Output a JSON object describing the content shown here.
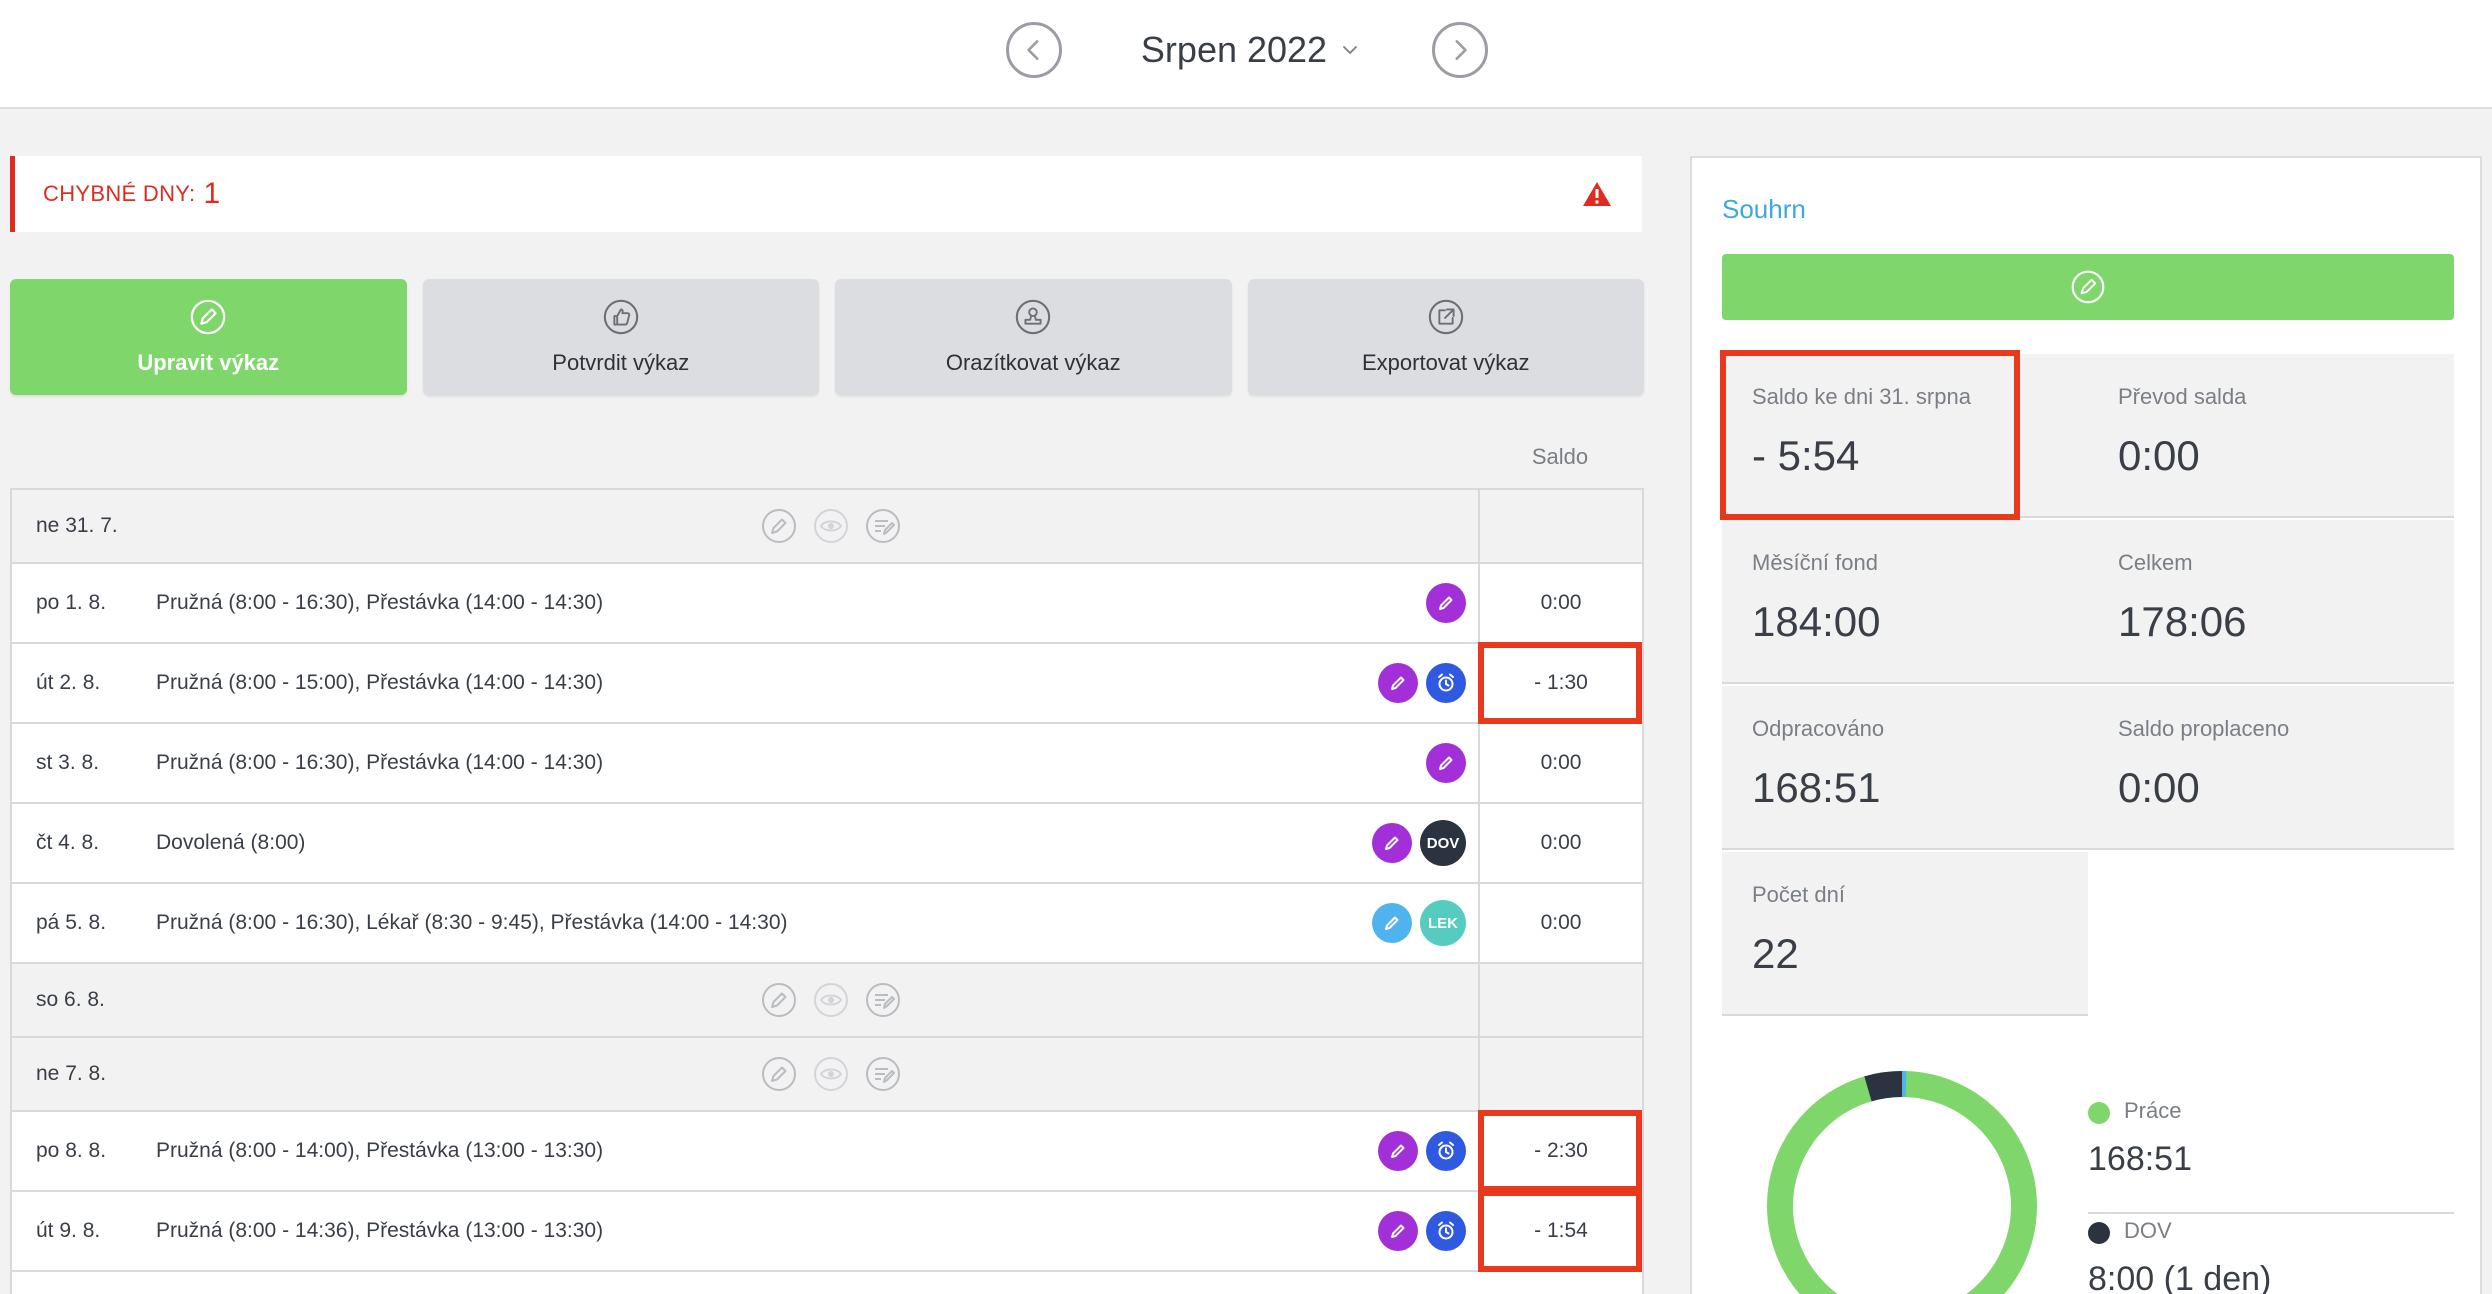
{
  "header": {
    "month": "Srpen 2022",
    "prev_icon": "chevron-left-icon",
    "next_icon": "chevron-right-icon"
  },
  "errors": {
    "label": "CHYBNÉ DNY:",
    "count": "1",
    "icon": "warning-icon",
    "color": "#e02b20"
  },
  "actions": [
    {
      "label": "Upravit výkaz",
      "icon": "pencil-icon",
      "primary": true
    },
    {
      "label": "Potvrdit výkaz",
      "icon": "thumbs-up-icon"
    },
    {
      "label": "Orazítkovat výkaz",
      "icon": "stamp-icon"
    },
    {
      "label": "Exportovat výkaz",
      "icon": "export-icon"
    }
  ],
  "table": {
    "saldo_header": "Saldo",
    "rows": [
      {
        "day": "ne 31. 7.",
        "weekend": true
      },
      {
        "day": "po 1. 8.",
        "desc": "Pružná (8:00 - 16:30), Přestávka (14:00 - 14:30)",
        "saldo": "0:00",
        "icons": [
          "pencil"
        ]
      },
      {
        "day": "út 2. 8.",
        "desc": "Pružná (8:00 - 15:00), Přestávka (14:00 - 14:30)",
        "saldo": "- 1:30",
        "icons": [
          "pencil",
          "alarm"
        ],
        "highlight": true
      },
      {
        "day": "st 3. 8.",
        "desc": "Pružná (8:00 - 16:30), Přestávka (14:00 - 14:30)",
        "saldo": "0:00",
        "icons": [
          "pencil"
        ]
      },
      {
        "day": "čt 4. 8.",
        "desc": "Dovolená (8:00)",
        "saldo": "0:00",
        "icons": [
          "pencil",
          "DOV"
        ]
      },
      {
        "day": "pá 5. 8.",
        "desc": "Pružná (8:00 - 16:30), Lékař (8:30 - 9:45), Přestávka (14:00 - 14:30)",
        "saldo": "0:00",
        "icons": [
          "pencil-light",
          "LEK"
        ]
      },
      {
        "day": "so 6. 8.",
        "weekend": true
      },
      {
        "day": "ne 7. 8.",
        "weekend": true
      },
      {
        "day": "po 8. 8.",
        "desc": "Pružná (8:00 - 14:00), Přestávka (13:00 - 13:30)",
        "saldo": "- 2:30",
        "icons": [
          "pencil",
          "alarm"
        ],
        "highlight": true
      },
      {
        "day": "út 9. 8.",
        "desc": "Pružná (8:00 - 14:36), Přestávka (13:00 - 13:30)",
        "saldo": "- 1:54",
        "icons": [
          "pencil",
          "alarm"
        ],
        "highlight": true
      }
    ]
  },
  "summary": {
    "title": "Souhrn",
    "edit_icon": "pencil-icon",
    "cells": [
      {
        "label": "Saldo ke dni 31. srpna",
        "value": "- 5:54",
        "highlight": true
      },
      {
        "label": "Převod salda",
        "value": "0:00"
      },
      {
        "label": "Měsíční fond",
        "value": "184:00"
      },
      {
        "label": "Celkem",
        "value": "178:06"
      },
      {
        "label": "Odpracováno",
        "value": "168:51"
      },
      {
        "label": "Saldo proplaceno",
        "value": "0:00"
      },
      {
        "label": "Počet dní",
        "value": "22"
      }
    ],
    "legend": [
      {
        "name": "Práce",
        "value": "168:51",
        "color": "#7fd66a"
      },
      {
        "name": "DOV",
        "value": "8:00 (1 den)",
        "color": "#2b3340"
      }
    ],
    "donut": {
      "work_fraction": 0.953,
      "dov_fraction": 0.045,
      "other_fraction": 0.002,
      "other_color": "#4fb3ef"
    }
  }
}
